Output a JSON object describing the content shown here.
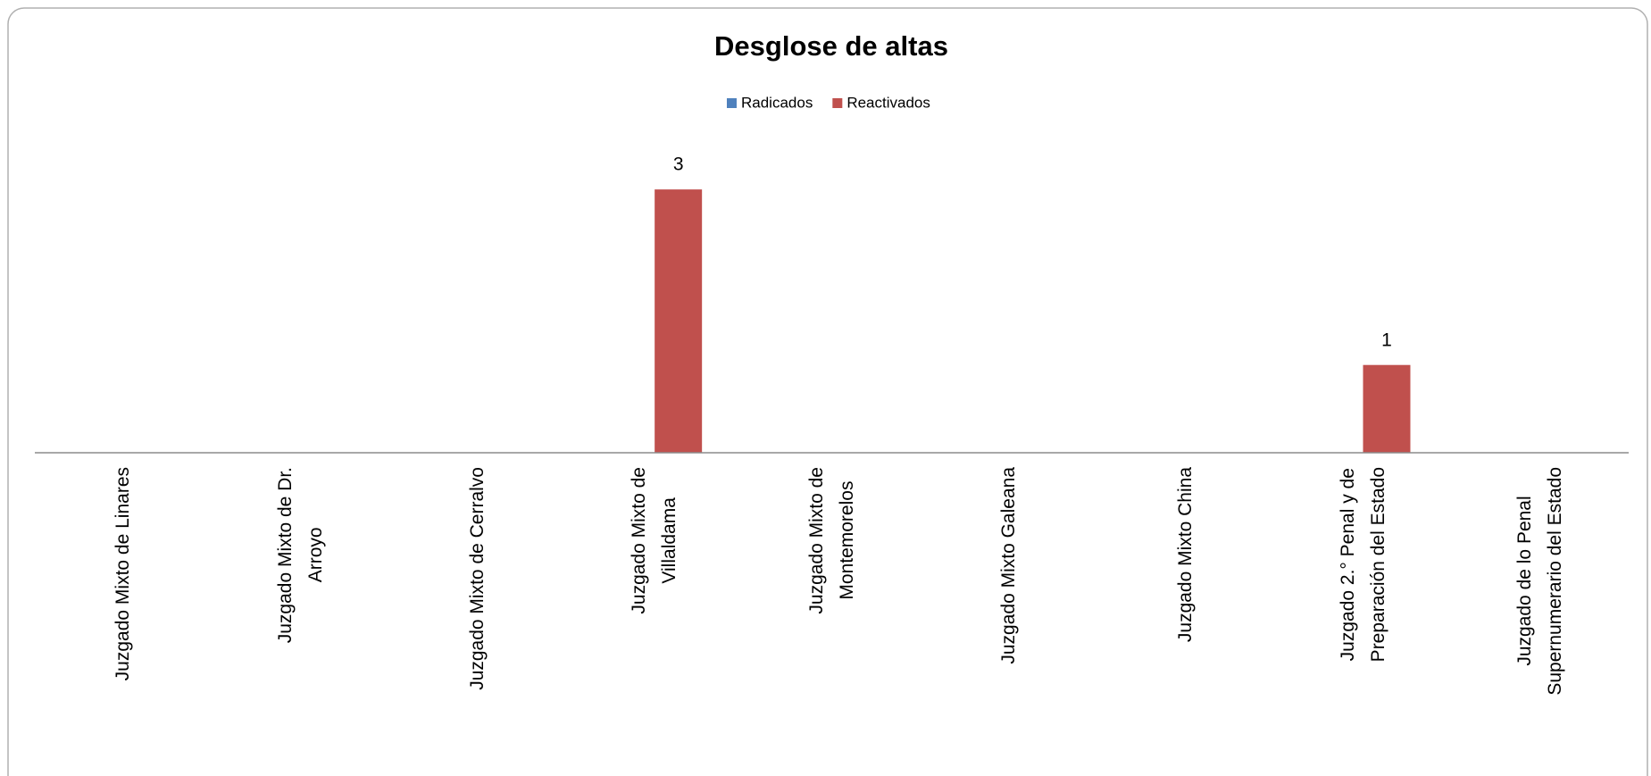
{
  "chart_data": {
    "type": "bar",
    "title": "Desglose de altas",
    "categories": [
      "Juzgado Mixto de Linares",
      "Juzgado Mixto de  Dr.\nArroyo",
      "Juzgado Mixto de  Cerralvo",
      "Juzgado Mixto  de\nVillaldama",
      "Juzgado Mixto de\nMontemorelos",
      "Juzgado Mixto Galeana",
      "Juzgado Mixto China",
      "Juzgado 2.° Penal y de\nPreparación del Estado",
      "Juzgado de lo Penal\nSupernumerario del Estado"
    ],
    "series": [
      {
        "name": "Radicados",
        "color": "#4f81bd",
        "values": [
          0,
          0,
          0,
          0,
          0,
          0,
          0,
          0,
          0
        ]
      },
      {
        "name": "Reactivados",
        "color": "#c0504d",
        "values": [
          0,
          0,
          0,
          3,
          0,
          0,
          0,
          1,
          0
        ],
        "value_labels": [
          null,
          null,
          null,
          "3",
          null,
          null,
          null,
          "1",
          null
        ]
      }
    ],
    "ylim": [
      0,
      3.5
    ],
    "legend": "top"
  }
}
